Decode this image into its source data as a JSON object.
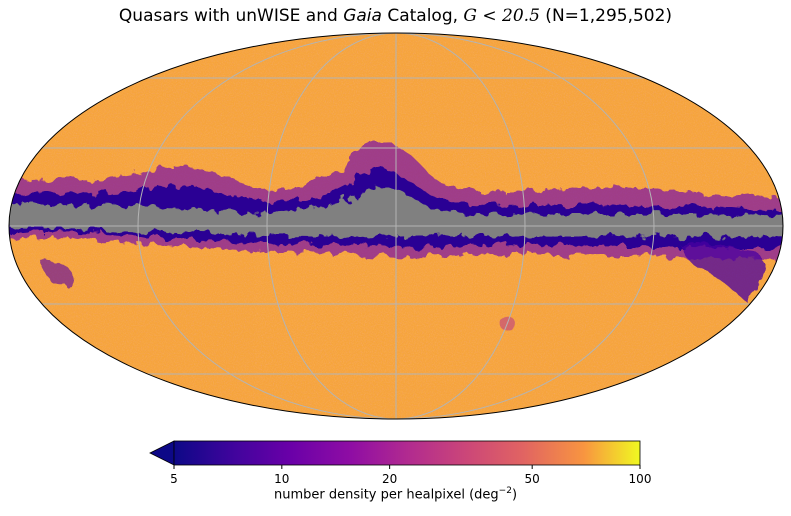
{
  "title": {
    "part1": "Quasars with unWISE and ",
    "italic": "Gaia",
    "part2": " Catalog, ",
    "math": "G < 20.5",
    "part3": " (N=1,295,502)"
  },
  "chart_data": {
    "type": "heatmap",
    "projection": "mollweide",
    "grid": true,
    "masked_color": "#808080",
    "colormap": "plasma",
    "colorbar": {
      "scale": "log",
      "range": [
        5,
        100
      ],
      "extend": "min",
      "ticks": [
        5,
        10,
        20,
        50,
        100
      ],
      "tick_labels": [
        "5",
        "10",
        "20",
        "50",
        "100"
      ],
      "label_main": "number density per healpixel (deg",
      "label_exp": "−2",
      "label_close": ")"
    },
    "typical_density": 40
  }
}
